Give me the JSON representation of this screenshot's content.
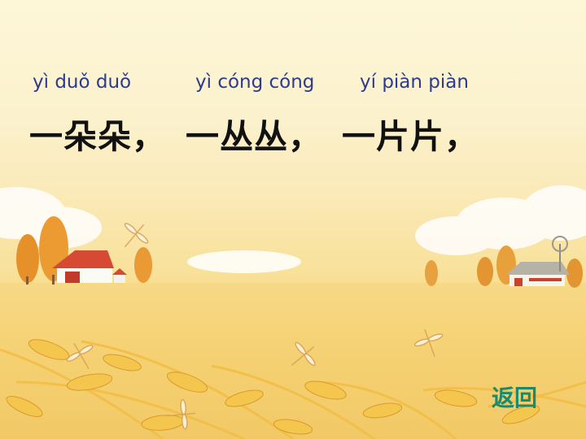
{
  "pinyin": {
    "phrase1": "yì  duǒ duǒ",
    "phrase2": "yì cóng cóng",
    "phrase3": "yí piàn piàn"
  },
  "hanzi": {
    "phrase1": "一朵朵，",
    "phrase2": "一丛丛，",
    "phrase3": "一片片，"
  },
  "nav": {
    "back_label": "返回"
  },
  "colors": {
    "pinyin": "#2d3b8e",
    "hanzi": "#111111",
    "back_button": "#1a8a6e"
  }
}
